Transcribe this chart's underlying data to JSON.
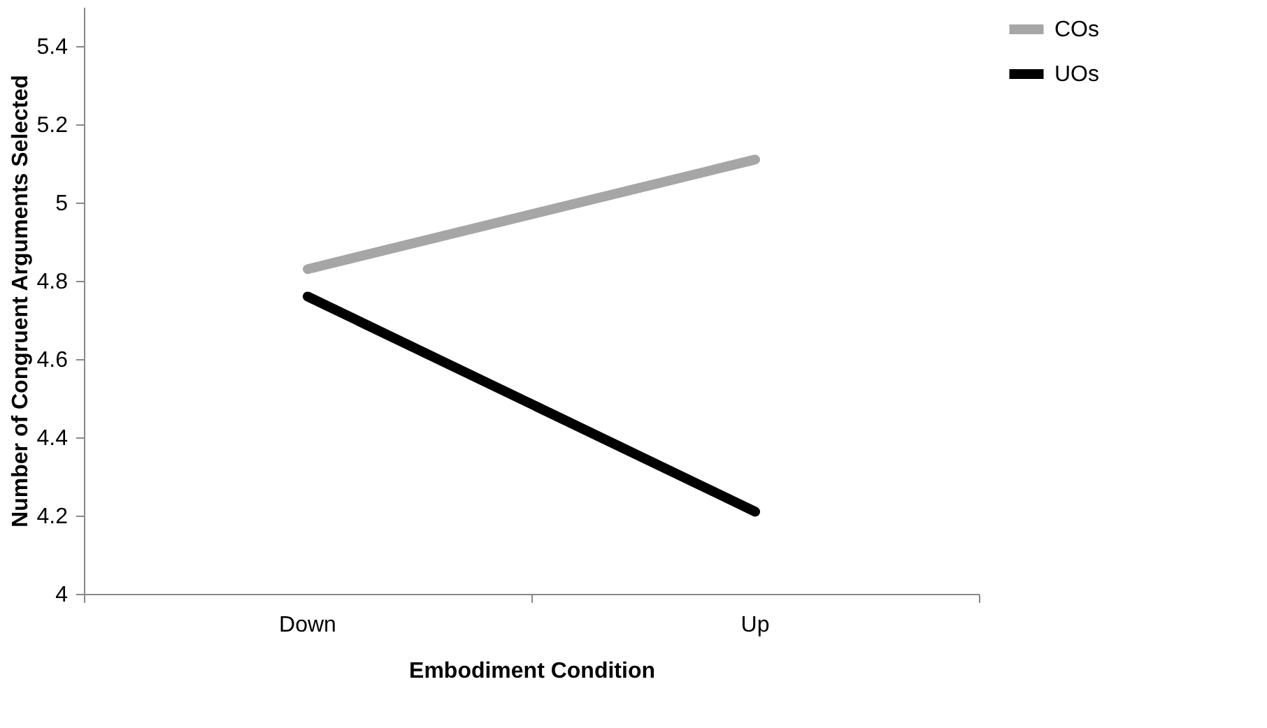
{
  "chart_data": {
    "type": "line",
    "xlabel": "Embodiment Condition",
    "ylabel": "Number of Congruent Arguments Selected",
    "categories": [
      "Down",
      "Up"
    ],
    "series": [
      {
        "name": "COs",
        "color": "#a6a6a6",
        "values": [
          4.83,
          5.11
        ]
      },
      {
        "name": "UOs",
        "color": "#000000",
        "values": [
          4.76,
          4.21
        ]
      }
    ],
    "ylim": [
      4,
      5.5
    ],
    "yticks": [
      4,
      4.2,
      4.4,
      4.6,
      4.8,
      5,
      5.2,
      5.4
    ],
    "grid": false,
    "legend": "right",
    "marker": "none",
    "line_style": "solid"
  }
}
